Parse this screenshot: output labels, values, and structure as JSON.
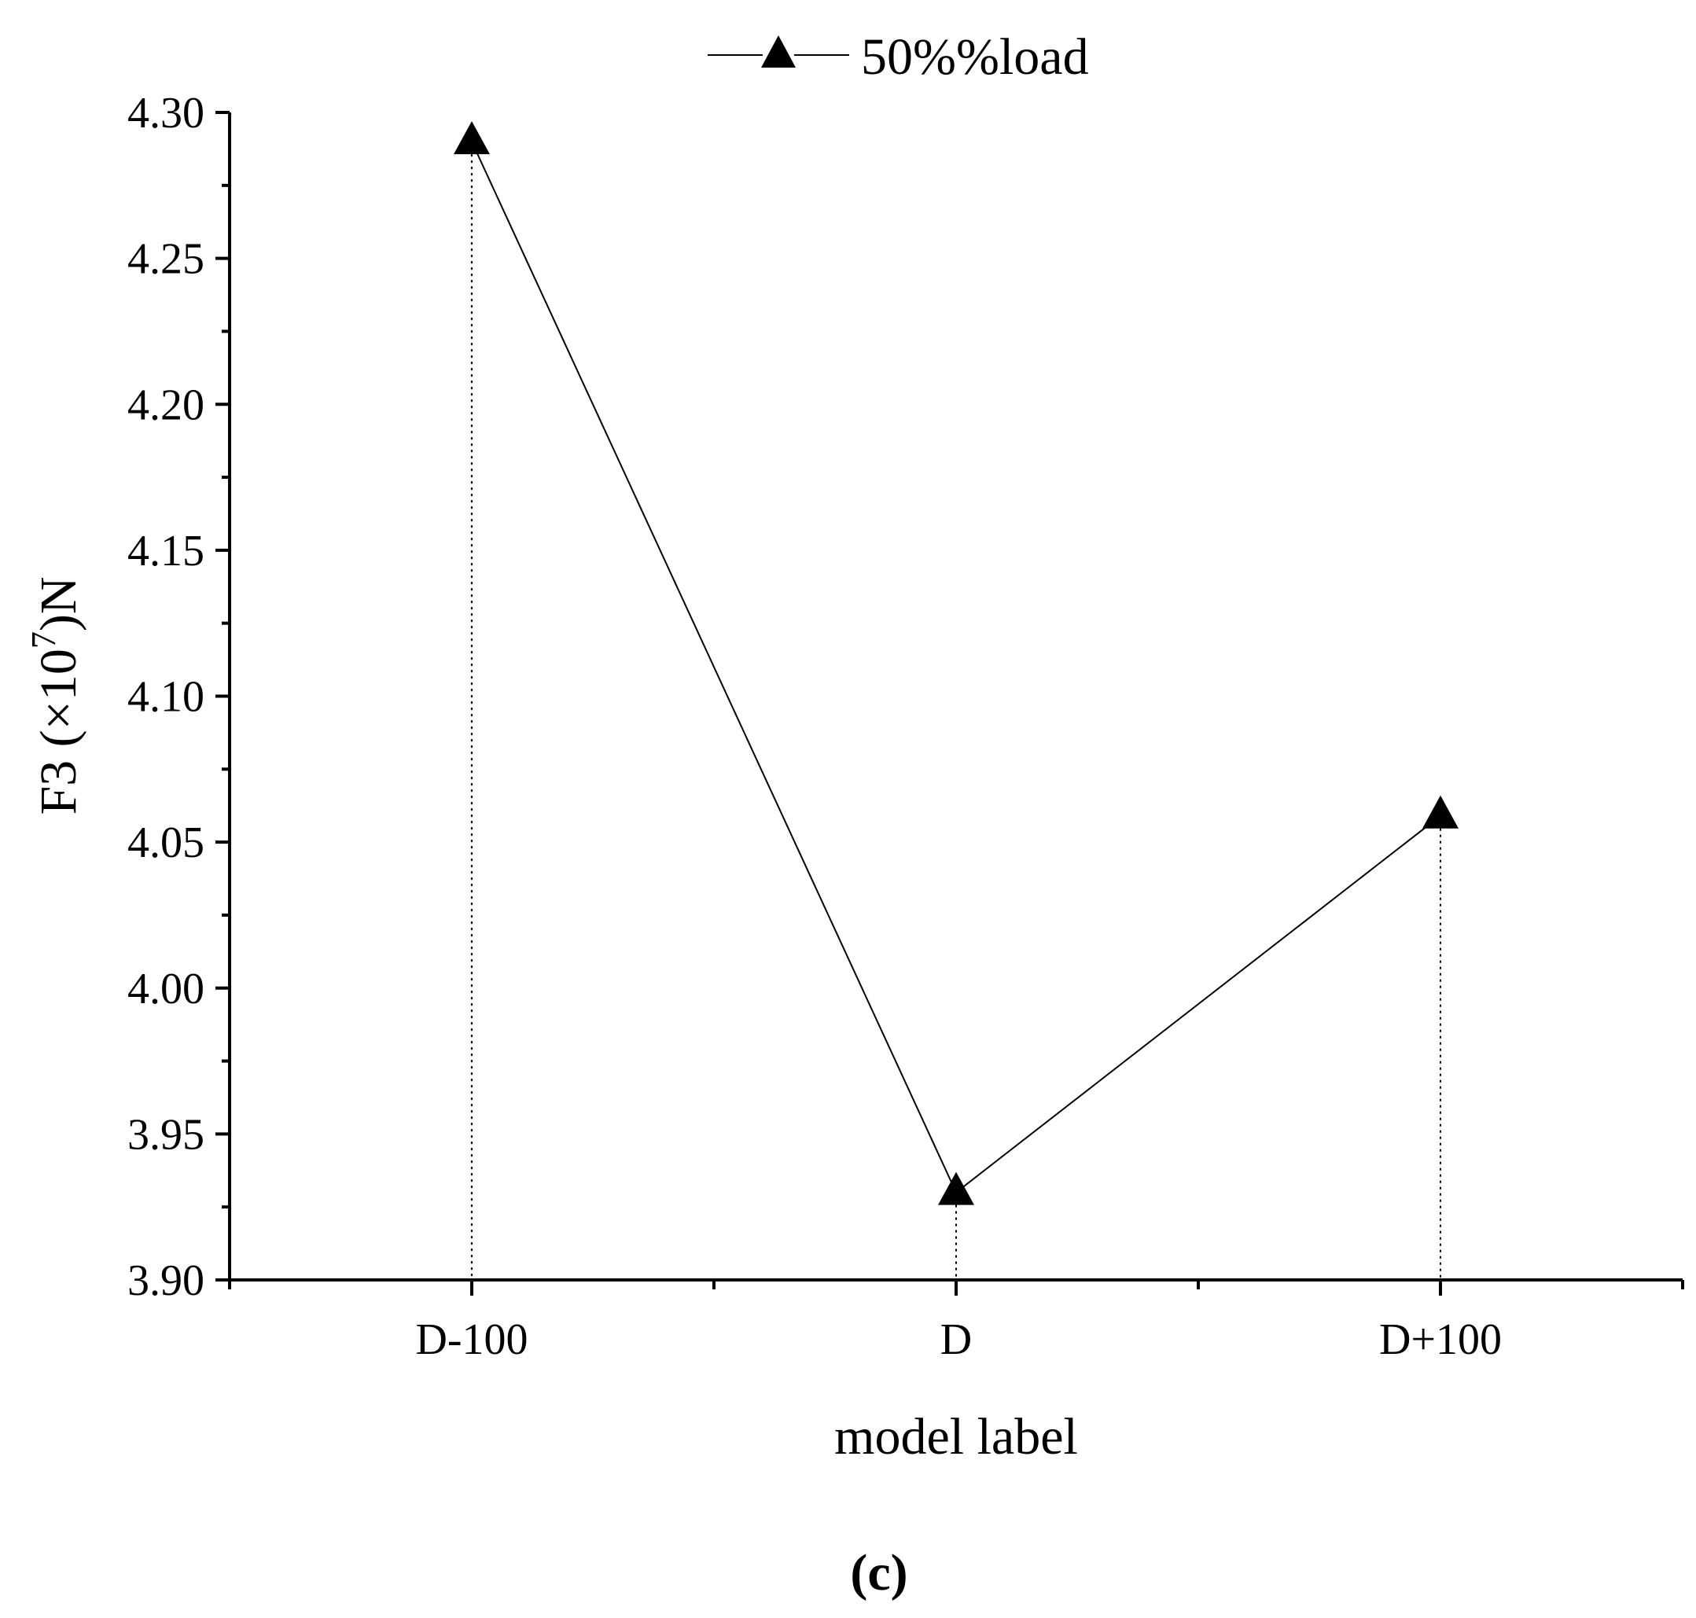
{
  "chart_data": {
    "type": "line",
    "categories": [
      "D-100",
      "D",
      "D+100"
    ],
    "series": [
      {
        "name": "50%%load",
        "values": [
          4.29,
          3.93,
          4.059
        ],
        "marker": "triangle",
        "color": "#000000"
      }
    ],
    "xlabel": "model label",
    "ylabel": {
      "prefix": "F3 (×10",
      "superscript": "7",
      "suffix": ")N"
    },
    "ylim": [
      3.9,
      4.3
    ],
    "yticks": [
      "3.90",
      "3.95",
      "4.00",
      "4.05",
      "4.10",
      "4.15",
      "4.20",
      "4.25",
      "4.30"
    ],
    "y_tick_step": 0.05,
    "y_minor_step": 0.025,
    "drop_lines": true,
    "grid": false,
    "legend_position": "top-center",
    "panel_label": {
      "open": "(",
      "letter": "c",
      "close": ")"
    }
  }
}
